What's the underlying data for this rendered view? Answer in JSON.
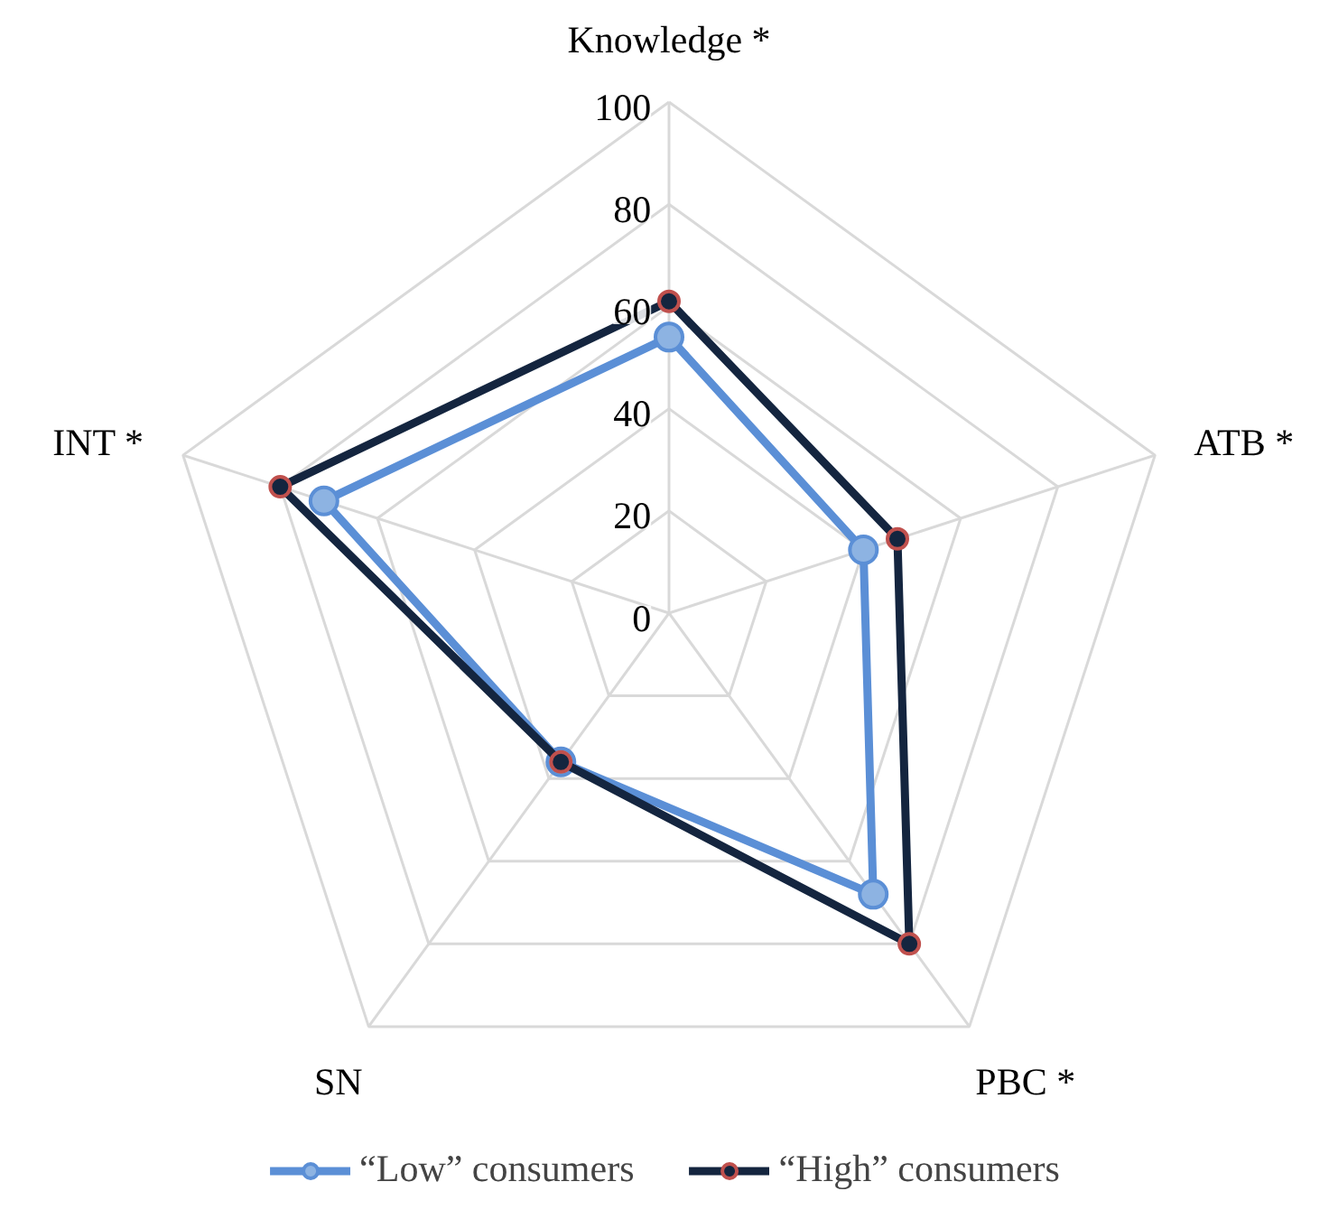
{
  "chart_data": {
    "type": "radar",
    "categories": [
      "Knowledge *",
      "ATB *",
      "PBC *",
      "SN",
      "INT *"
    ],
    "series": [
      {
        "name": "“Low” consumers",
        "color": "#5b8fd6",
        "values": [
          54,
          40,
          68,
          36,
          71
        ]
      },
      {
        "name": "“High” consumers",
        "color": "#14253f",
        "values": [
          61,
          47,
          80,
          36,
          80
        ]
      }
    ],
    "ylim": [
      0,
      100
    ],
    "yticks": [
      0,
      20,
      40,
      60,
      80,
      100
    ],
    "grid": true,
    "legend": "bottom",
    "marker": "circle",
    "line_style": "solid"
  }
}
